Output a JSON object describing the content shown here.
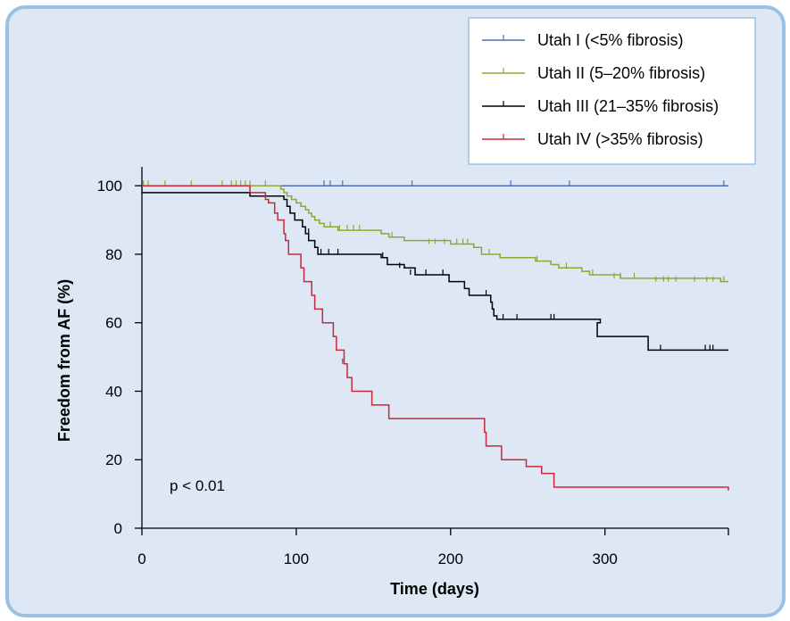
{
  "chart_data": {
    "type": "line",
    "subtype": "kaplan-meier step curves with censor ticks",
    "xlabel": "Time (days)",
    "ylabel": "Freedom from AF (%)",
    "xlim": [
      0,
      380
    ],
    "ylim": [
      0,
      105
    ],
    "xticks": [
      0,
      100,
      200,
      300
    ],
    "yticks": [
      0,
      20,
      40,
      60,
      80,
      100
    ],
    "grid": false,
    "legend_position": "top-right",
    "annotation": "p < 0.01",
    "series": [
      {
        "name": "Utah I (<5% fibrosis)",
        "color": "#4a6fb5",
        "steps": [
          [
            0,
            100
          ],
          [
            380,
            100
          ]
        ],
        "censors": [
          [
            118,
            100
          ],
          [
            122,
            100
          ],
          [
            130,
            100
          ],
          [
            175,
            100
          ],
          [
            239,
            100
          ],
          [
            277,
            100
          ],
          [
            377,
            100
          ]
        ]
      },
      {
        "name": "Utah II (5–20% fibrosis)",
        "color": "#8ea832",
        "steps": [
          [
            0,
            100
          ],
          [
            88,
            100
          ],
          [
            90,
            99
          ],
          [
            92,
            98
          ],
          [
            94,
            97
          ],
          [
            97,
            96
          ],
          [
            100,
            95
          ],
          [
            103,
            94
          ],
          [
            106,
            93
          ],
          [
            108,
            92
          ],
          [
            110,
            91
          ],
          [
            112,
            90
          ],
          [
            115,
            89
          ],
          [
            118,
            88
          ],
          [
            127,
            87
          ],
          [
            155,
            86
          ],
          [
            160,
            85
          ],
          [
            170,
            84
          ],
          [
            200,
            83
          ],
          [
            215,
            82
          ],
          [
            220,
            80
          ],
          [
            232,
            79
          ],
          [
            255,
            78
          ],
          [
            265,
            77
          ],
          [
            270,
            76
          ],
          [
            285,
            75
          ],
          [
            290,
            74
          ],
          [
            310,
            73
          ],
          [
            375,
            72
          ],
          [
            380,
            72
          ]
        ],
        "censors": [
          [
            1,
            100
          ],
          [
            4,
            100
          ],
          [
            15,
            100
          ],
          [
            32,
            100
          ],
          [
            52,
            100
          ],
          [
            58,
            100
          ],
          [
            61,
            100
          ],
          [
            64,
            100
          ],
          [
            67,
            100
          ],
          [
            70,
            100
          ],
          [
            80,
            100
          ],
          [
            122,
            88
          ],
          [
            128,
            87
          ],
          [
            133,
            87
          ],
          [
            137,
            87
          ],
          [
            141,
            87
          ],
          [
            162,
            85
          ],
          [
            186,
            83
          ],
          [
            190,
            83
          ],
          [
            196,
            83
          ],
          [
            204,
            83
          ],
          [
            208,
            83
          ],
          [
            211,
            83
          ],
          [
            225,
            80
          ],
          [
            256,
            78
          ],
          [
            275,
            76
          ],
          [
            292,
            74
          ],
          [
            306,
            73
          ],
          [
            310,
            73
          ],
          [
            319,
            73
          ],
          [
            333,
            72
          ],
          [
            338,
            72
          ],
          [
            341,
            72
          ],
          [
            346,
            72
          ],
          [
            358,
            72
          ],
          [
            366,
            72
          ],
          [
            370,
            72
          ],
          [
            377,
            72
          ]
        ]
      },
      {
        "name": "Utah III (21–35% fibrosis)",
        "color": "#000000",
        "steps": [
          [
            0,
            98
          ],
          [
            68,
            98
          ],
          [
            70,
            97
          ],
          [
            92,
            96
          ],
          [
            94,
            94
          ],
          [
            96,
            92
          ],
          [
            99,
            90
          ],
          [
            104,
            88
          ],
          [
            106,
            86
          ],
          [
            108,
            84
          ],
          [
            112,
            82
          ],
          [
            114,
            80
          ],
          [
            155,
            79
          ],
          [
            159,
            77
          ],
          [
            170,
            76
          ],
          [
            177,
            74
          ],
          [
            199,
            72
          ],
          [
            209,
            70
          ],
          [
            212,
            68
          ],
          [
            226,
            66
          ],
          [
            227,
            64
          ],
          [
            228,
            62
          ],
          [
            230,
            61
          ],
          [
            297,
            60
          ],
          [
            295,
            56
          ],
          [
            328,
            52
          ],
          [
            380,
            52
          ]
        ],
        "censors": [
          [
            0,
            98
          ],
          [
            108,
            86
          ],
          [
            116,
            80
          ],
          [
            121,
            80
          ],
          [
            127,
            80
          ],
          [
            156,
            79
          ],
          [
            167,
            76
          ],
          [
            174,
            74
          ],
          [
            184,
            74
          ],
          [
            195,
            74
          ],
          [
            223,
            68
          ],
          [
            234,
            61
          ],
          [
            243,
            61
          ],
          [
            265,
            61
          ],
          [
            267,
            61
          ],
          [
            336,
            52
          ],
          [
            365,
            52
          ],
          [
            368,
            52
          ],
          [
            370,
            52
          ]
        ]
      },
      {
        "name": "Utah IV (>35% fibrosis)",
        "color": "#c8283c",
        "steps": [
          [
            0,
            100
          ],
          [
            68,
            100
          ],
          [
            70,
            98
          ],
          [
            80,
            96
          ],
          [
            82,
            95
          ],
          [
            86,
            92
          ],
          [
            88,
            90
          ],
          [
            92,
            86
          ],
          [
            93,
            84
          ],
          [
            95,
            80
          ],
          [
            103,
            76
          ],
          [
            105,
            72
          ],
          [
            110,
            68
          ],
          [
            112,
            64
          ],
          [
            117,
            60
          ],
          [
            124,
            56
          ],
          [
            126,
            52
          ],
          [
            131,
            48
          ],
          [
            133,
            44
          ],
          [
            136,
            40
          ],
          [
            149,
            36
          ],
          [
            160,
            32
          ],
          [
            222,
            28
          ],
          [
            223,
            24
          ],
          [
            233,
            20
          ],
          [
            249,
            18
          ],
          [
            259,
            16
          ],
          [
            267,
            12
          ],
          [
            297,
            12
          ],
          [
            380,
            11
          ]
        ],
        "censors": [
          [
            130,
            48
          ]
        ]
      }
    ]
  }
}
